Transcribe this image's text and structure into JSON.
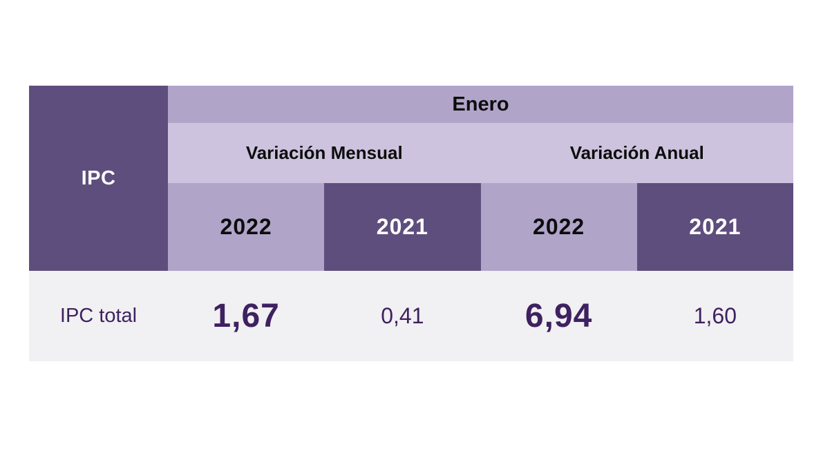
{
  "chart_data": {
    "type": "table",
    "title": "",
    "corner_label": "IPC",
    "month_header": "Enero",
    "group_headers": {
      "mensual": "Variación Mensual",
      "anual": "Variación Anual"
    },
    "year_headers": [
      "2022",
      "2021",
      "2022",
      "2021"
    ],
    "rows": [
      {
        "label": "IPC total",
        "values": [
          "1,67",
          "0,41",
          "6,94",
          "1,60"
        ],
        "numeric_values": [
          1.67,
          0.41,
          6.94,
          1.6
        ]
      }
    ],
    "column_structure": [
      {
        "group": "Variación Mensual",
        "year": "2022"
      },
      {
        "group": "Variación Mensual",
        "year": "2021"
      },
      {
        "group": "Variación Anual",
        "year": "2022"
      },
      {
        "group": "Variación Anual",
        "year": "2021"
      }
    ]
  },
  "colors": {
    "dark_purple": "#5e4e7d",
    "medium_lavender": "#b1a4c9",
    "light_lavender": "#cdc3de",
    "data_row_background": "#f1f0f2",
    "value_text": "#3e2160",
    "header_text_black": "#0d0d0d",
    "header_text_white": "#fcfcfc",
    "page_background": "#ffffff"
  }
}
